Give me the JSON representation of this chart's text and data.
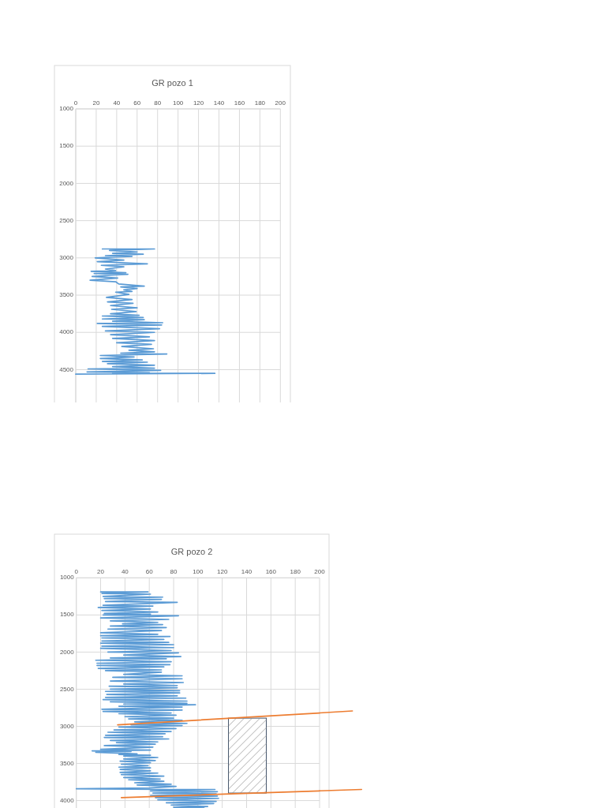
{
  "chart_data": [
    {
      "type": "line",
      "title": "GR pozo 1",
      "xlim": [
        0,
        200
      ],
      "xticks": [
        0,
        20,
        40,
        60,
        80,
        100,
        120,
        140,
        160,
        180,
        200
      ],
      "ylim": [
        4940,
        1000
      ],
      "yticks": [
        1000,
        1500,
        2000,
        2500,
        3000,
        3500,
        4000,
        4500
      ],
      "grid": true,
      "series": [
        {
          "color": "#5b9bd5",
          "x": [
            26,
            77,
            33,
            60,
            36,
            66,
            29,
            55,
            19,
            47,
            21,
            70,
            25,
            47,
            29,
            39,
            15,
            49,
            18,
            51,
            16,
            41,
            14,
            39,
            42,
            67,
            44,
            60,
            47,
            55,
            39,
            52,
            30,
            55,
            31,
            56,
            34,
            60,
            35,
            59,
            34,
            62,
            26,
            66,
            26,
            67,
            36,
            85,
            21,
            84,
            26,
            82,
            29,
            77,
            34,
            72,
            36,
            77,
            40,
            74,
            45,
            76,
            52,
            77,
            44,
            89,
            24,
            57,
            24,
            65,
            26,
            70,
            31,
            77,
            36,
            77,
            12,
            83,
            11,
            72,
            36,
            136,
            0
          ],
          "values": [
            2880,
            2880,
            2900,
            2920,
            2940,
            2950,
            2970,
            2980,
            3000,
            3030,
            3050,
            3080,
            3100,
            3120,
            3150,
            3170,
            3180,
            3200,
            3210,
            3220,
            3250,
            3270,
            3300,
            3320,
            3350,
            3380,
            3390,
            3410,
            3430,
            3450,
            3460,
            3490,
            3530,
            3560,
            3590,
            3610,
            3640,
            3670,
            3690,
            3720,
            3750,
            3770,
            3780,
            3800,
            3820,
            3830,
            3850,
            3870,
            3880,
            3900,
            3920,
            3950,
            3980,
            4000,
            4030,
            4060,
            4080,
            4110,
            4140,
            4160,
            4190,
            4220,
            4240,
            4260,
            4280,
            4290,
            4310,
            4330,
            4350,
            4370,
            4390,
            4400,
            4420,
            4440,
            4460,
            4480,
            4490,
            4510,
            4530,
            4540,
            4550,
            4550,
            4560
          ]
        }
      ]
    },
    {
      "type": "line",
      "title": "GR pozo 2",
      "xlim": [
        0,
        200
      ],
      "xticks": [
        0,
        20,
        40,
        60,
        80,
        100,
        120,
        140,
        160,
        180,
        200
      ],
      "ylim": [
        4100,
        1000
      ],
      "yticks": [
        1000,
        1500,
        2000,
        2500,
        3000,
        3500,
        4000
      ],
      "grid": true,
      "series": [
        {
          "color": "#5b9bd5",
          "x": [
            20,
            59,
            21,
            61,
            22,
            71,
            23,
            70,
            24,
            83,
            22,
            63,
            18,
            61,
            21,
            67,
            23,
            61,
            22,
            84,
            20,
            76,
            28,
            67,
            38,
            71,
            28,
            74,
            26,
            70,
            20,
            67,
            20,
            77,
            21,
            72,
            21,
            76,
            20,
            80,
            21,
            80,
            20,
            78,
            26,
            84,
            39,
            86,
            28,
            74,
            16,
            78,
            17,
            77,
            17,
            72,
            18,
            70,
            24,
            70,
            39,
            87,
            30,
            87,
            28,
            88,
            39,
            83,
            27,
            83,
            28,
            85,
            24,
            85,
            25,
            83,
            24,
            90,
            22,
            91,
            28,
            91,
            39,
            98,
            35,
            87,
            21,
            87,
            22,
            78,
            35,
            82,
            40,
            80,
            43,
            87,
            48,
            91,
            45,
            87,
            35,
            82,
            31,
            78,
            26,
            73,
            24,
            71,
            23,
            76,
            28,
            67,
            33,
            65,
            23,
            63,
            20,
            61,
            13,
            45,
            16,
            50,
            35,
            61,
            39,
            67,
            39,
            65,
            36,
            61,
            37,
            59,
            35,
            61,
            36,
            61,
            36,
            67,
            37,
            72,
            39,
            69,
            43,
            72,
            48,
            78,
            50,
            82,
            60,
            0,
            70,
            114,
            61,
            116,
            63,
            115,
            61,
            116,
            65,
            117,
            67,
            115,
            74,
            113,
            78,
            108,
            80,
            105
          ],
          "values": [
            1190,
            1190,
            1210,
            1220,
            1250,
            1260,
            1280,
            1290,
            1320,
            1330,
            1370,
            1380,
            1400,
            1420,
            1440,
            1460,
            1480,
            1490,
            1500,
            1510,
            1540,
            1560,
            1580,
            1600,
            1620,
            1630,
            1650,
            1670,
            1690,
            1710,
            1740,
            1760,
            1780,
            1790,
            1810,
            1830,
            1850,
            1870,
            1880,
            1900,
            1920,
            1940,
            1950,
            1980,
            2000,
            2010,
            2040,
            2060,
            2080,
            2090,
            2110,
            2130,
            2150,
            2170,
            2180,
            2200,
            2220,
            2240,
            2250,
            2270,
            2300,
            2320,
            2340,
            2360,
            2390,
            2410,
            2430,
            2450,
            2460,
            2480,
            2500,
            2520,
            2530,
            2550,
            2570,
            2590,
            2610,
            2620,
            2640,
            2660,
            2670,
            2690,
            2700,
            2710,
            2730,
            2740,
            2770,
            2780,
            2800,
            2820,
            2830,
            2850,
            2870,
            2890,
            2900,
            2920,
            2940,
            2960,
            2980,
            2990,
            3010,
            3030,
            3050,
            3070,
            3080,
            3100,
            3120,
            3140,
            3150,
            3170,
            3190,
            3210,
            3220,
            3240,
            3260,
            3280,
            3310,
            3320,
            3330,
            3340,
            3350,
            3370,
            3380,
            3390,
            3400,
            3420,
            3440,
            3460,
            3470,
            3490,
            3510,
            3530,
            3550,
            3560,
            3580,
            3600,
            3620,
            3630,
            3650,
            3670,
            3690,
            3710,
            3720,
            3740,
            3760,
            3780,
            3790,
            3810,
            3830,
            3840,
            3850,
            3850,
            3870,
            3880,
            3900,
            3910,
            3930,
            3940,
            3960,
            3970,
            3990,
            4010,
            4030,
            4040,
            4060,
            4080,
            4090,
            4100
          ]
        },
        {
          "type": "line",
          "color": "#ed7d31",
          "x": [
            34,
            200
          ],
          "values": [
            2980,
            2820
          ]
        },
        {
          "type": "line",
          "color": "#ed7d31",
          "x": [
            37,
            200
          ],
          "values": [
            3960,
            3870
          ]
        }
      ]
    }
  ]
}
